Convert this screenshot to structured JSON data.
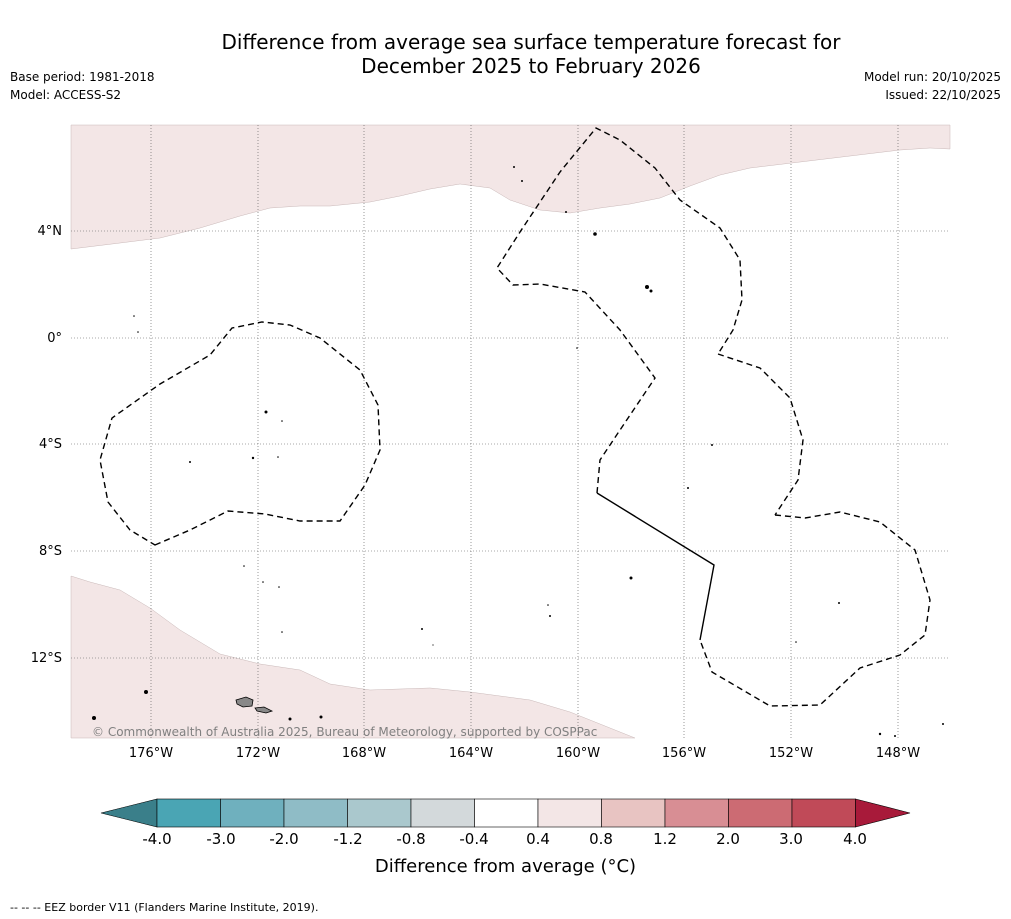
{
  "title": {
    "line1": "Difference from average sea surface temperature forecast for",
    "line2": "December 2025 to February 2026"
  },
  "meta": {
    "base_period": "Base period: 1981-2018",
    "model": "Model: ACCESS-S2",
    "model_run": "Model run: 20/10/2025",
    "issued": "Issued: 22/10/2025"
  },
  "map": {
    "lat_labels": [
      "4°N",
      "0°",
      "4°S",
      "8°S",
      "12°S"
    ],
    "lon_labels": [
      "176°W",
      "172°W",
      "168°W",
      "164°W",
      "160°W",
      "156°W",
      "152°W",
      "148°W"
    ],
    "copyright": "© Commonwealth of Australia 2025, Bureau of Meteorology, supported by COSPPac",
    "colors": {
      "anomaly_0_4_to_0_8": "#f3e6e6",
      "land": "#888888",
      "eez_border": "#000000",
      "gridline": "#555555"
    }
  },
  "colorbar": {
    "ticks": [
      "-4.0",
      "-3.0",
      "-2.0",
      "-1.2",
      "-0.8",
      "-0.4",
      "0.4",
      "0.8",
      "1.2",
      "2.0",
      "3.0",
      "4.0"
    ],
    "colors": [
      "#3a7f8a",
      "#4aa5b4",
      "#6fb0be",
      "#8fbcc6",
      "#aac8cd",
      "#d3d9db",
      "#ffffff",
      "#f3e6e6",
      "#e8c4c2",
      "#d88e94",
      "#cc6b73",
      "#c04a58",
      "#a81a3a"
    ],
    "label": "Difference from average (°C)"
  },
  "footer": "--  --  -- EEZ border V11 (Flanders Marine Institute, 2019)."
}
